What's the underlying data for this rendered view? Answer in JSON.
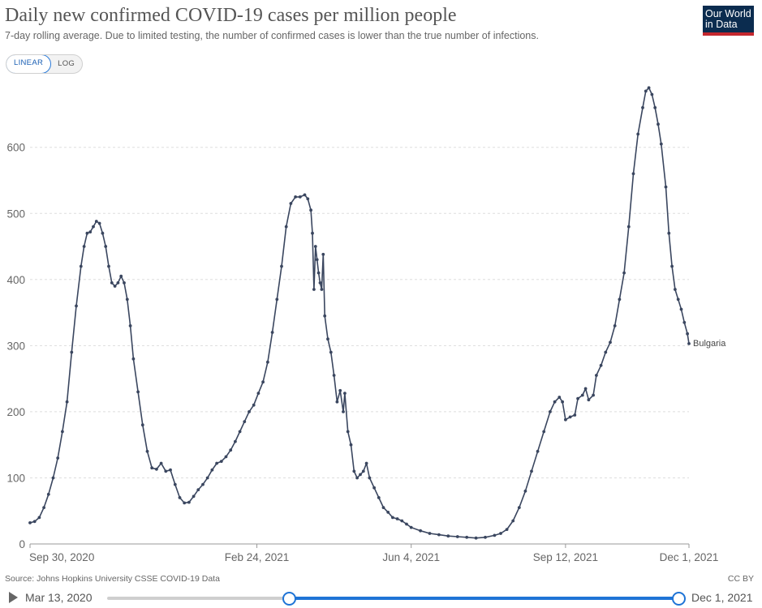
{
  "header": {
    "title": "Daily new confirmed COVID-19 cases per million people",
    "subtitle": "7-day rolling average. Due to limited testing, the number of confirmed cases is lower than the true number of infections.",
    "logo_line1": "Our World",
    "logo_line2": "in Data"
  },
  "controls": {
    "linear_label": "LINEAR",
    "log_label": "LOG",
    "active_scale": "linear"
  },
  "chart_data": {
    "type": "line",
    "title": "Daily new confirmed COVID-19 cases per million people",
    "xlabel": "",
    "ylabel": "",
    "x_range": [
      "2020-09-30",
      "2021-12-01"
    ],
    "ylim": [
      0,
      700
    ],
    "y_ticks": [
      0,
      100,
      200,
      300,
      400,
      500,
      600
    ],
    "x_ticks": [
      {
        "date": "2020-09-30",
        "label": "Sep 30, 2020"
      },
      {
        "date": "2021-02-24",
        "label": "Feb 24, 2021"
      },
      {
        "date": "2021-06-04",
        "label": "Jun 4, 2021"
      },
      {
        "date": "2021-09-12",
        "label": "Sep 12, 2021"
      },
      {
        "date": "2021-12-01",
        "label": "Dec 1, 2021"
      }
    ],
    "grid": "horizontal dashed",
    "series": [
      {
        "name": "Bulgaria",
        "color": "#3a465f",
        "points": [
          [
            "2020-09-30",
            32
          ],
          [
            "2020-10-03",
            34
          ],
          [
            "2020-10-06",
            40
          ],
          [
            "2020-10-09",
            55
          ],
          [
            "2020-10-12",
            75
          ],
          [
            "2020-10-15",
            100
          ],
          [
            "2020-10-18",
            130
          ],
          [
            "2020-10-21",
            170
          ],
          [
            "2020-10-24",
            215
          ],
          [
            "2020-10-27",
            290
          ],
          [
            "2020-10-30",
            360
          ],
          [
            "2020-11-02",
            420
          ],
          [
            "2020-11-04",
            450
          ],
          [
            "2020-11-06",
            470
          ],
          [
            "2020-11-08",
            472
          ],
          [
            "2020-11-10",
            480
          ],
          [
            "2020-11-12",
            488
          ],
          [
            "2020-11-14",
            485
          ],
          [
            "2020-11-16",
            470
          ],
          [
            "2020-11-18",
            450
          ],
          [
            "2020-11-20",
            420
          ],
          [
            "2020-11-22",
            395
          ],
          [
            "2020-11-24",
            390
          ],
          [
            "2020-11-26",
            395
          ],
          [
            "2020-11-28",
            405
          ],
          [
            "2020-11-30",
            395
          ],
          [
            "2020-12-02",
            370
          ],
          [
            "2020-12-04",
            330
          ],
          [
            "2020-12-06",
            280
          ],
          [
            "2020-12-09",
            230
          ],
          [
            "2020-12-12",
            180
          ],
          [
            "2020-12-15",
            140
          ],
          [
            "2020-12-18",
            115
          ],
          [
            "2020-12-21",
            113
          ],
          [
            "2020-12-24",
            122
          ],
          [
            "2020-12-27",
            110
          ],
          [
            "2020-12-30",
            112
          ],
          [
            "2021-01-02",
            90
          ],
          [
            "2021-01-05",
            70
          ],
          [
            "2021-01-08",
            62
          ],
          [
            "2021-01-11",
            63
          ],
          [
            "2021-01-14",
            72
          ],
          [
            "2021-01-17",
            82
          ],
          [
            "2021-01-20",
            90
          ],
          [
            "2021-01-23",
            100
          ],
          [
            "2021-01-26",
            112
          ],
          [
            "2021-01-29",
            122
          ],
          [
            "2021-02-01",
            125
          ],
          [
            "2021-02-04",
            132
          ],
          [
            "2021-02-07",
            142
          ],
          [
            "2021-02-10",
            155
          ],
          [
            "2021-02-13",
            170
          ],
          [
            "2021-02-16",
            185
          ],
          [
            "2021-02-19",
            200
          ],
          [
            "2021-02-22",
            210
          ],
          [
            "2021-02-25",
            228
          ],
          [
            "2021-02-28",
            245
          ],
          [
            "2021-03-03",
            275
          ],
          [
            "2021-03-06",
            320
          ],
          [
            "2021-03-09",
            370
          ],
          [
            "2021-03-12",
            420
          ],
          [
            "2021-03-15",
            480
          ],
          [
            "2021-03-18",
            515
          ],
          [
            "2021-03-21",
            525
          ],
          [
            "2021-03-24",
            525
          ],
          [
            "2021-03-27",
            528
          ],
          [
            "2021-03-29",
            522
          ],
          [
            "2021-03-31",
            505
          ],
          [
            "2021-04-01",
            470
          ],
          [
            "2021-04-02",
            385
          ],
          [
            "2021-04-03",
            450
          ],
          [
            "2021-04-04",
            430
          ],
          [
            "2021-04-05",
            410
          ],
          [
            "2021-04-06",
            395
          ],
          [
            "2021-04-07",
            385
          ],
          [
            "2021-04-08",
            438
          ],
          [
            "2021-04-09",
            345
          ],
          [
            "2021-04-11",
            310
          ],
          [
            "2021-04-13",
            290
          ],
          [
            "2021-04-15",
            255
          ],
          [
            "2021-04-17",
            215
          ],
          [
            "2021-04-19",
            232
          ],
          [
            "2021-04-21",
            200
          ],
          [
            "2021-04-22",
            228
          ],
          [
            "2021-04-24",
            170
          ],
          [
            "2021-04-26",
            150
          ],
          [
            "2021-04-28",
            110
          ],
          [
            "2021-04-30",
            100
          ],
          [
            "2021-05-02",
            105
          ],
          [
            "2021-05-04",
            110
          ],
          [
            "2021-05-06",
            122
          ],
          [
            "2021-05-08",
            100
          ],
          [
            "2021-05-11",
            85
          ],
          [
            "2021-05-14",
            70
          ],
          [
            "2021-05-17",
            55
          ],
          [
            "2021-05-20",
            48
          ],
          [
            "2021-05-23",
            40
          ],
          [
            "2021-05-26",
            38
          ],
          [
            "2021-05-29",
            35
          ],
          [
            "2021-06-01",
            30
          ],
          [
            "2021-06-04",
            25
          ],
          [
            "2021-06-10",
            20
          ],
          [
            "2021-06-16",
            16
          ],
          [
            "2021-06-22",
            14
          ],
          [
            "2021-06-28",
            12
          ],
          [
            "2021-07-04",
            11
          ],
          [
            "2021-07-10",
            10
          ],
          [
            "2021-07-16",
            9
          ],
          [
            "2021-07-22",
            10
          ],
          [
            "2021-07-28",
            13
          ],
          [
            "2021-08-01",
            16
          ],
          [
            "2021-08-05",
            22
          ],
          [
            "2021-08-09",
            35
          ],
          [
            "2021-08-13",
            55
          ],
          [
            "2021-08-17",
            80
          ],
          [
            "2021-08-21",
            110
          ],
          [
            "2021-08-25",
            140
          ],
          [
            "2021-08-29",
            170
          ],
          [
            "2021-09-02",
            200
          ],
          [
            "2021-09-05",
            215
          ],
          [
            "2021-09-08",
            222
          ],
          [
            "2021-09-10",
            215
          ],
          [
            "2021-09-12",
            188
          ],
          [
            "2021-09-15",
            192
          ],
          [
            "2021-09-18",
            195
          ],
          [
            "2021-09-20",
            220
          ],
          [
            "2021-09-23",
            225
          ],
          [
            "2021-09-25",
            235
          ],
          [
            "2021-09-27",
            218
          ],
          [
            "2021-09-30",
            225
          ],
          [
            "2021-10-02",
            255
          ],
          [
            "2021-10-05",
            270
          ],
          [
            "2021-10-08",
            290
          ],
          [
            "2021-10-11",
            305
          ],
          [
            "2021-10-14",
            330
          ],
          [
            "2021-10-17",
            370
          ],
          [
            "2021-10-20",
            410
          ],
          [
            "2021-10-23",
            480
          ],
          [
            "2021-10-26",
            560
          ],
          [
            "2021-10-29",
            620
          ],
          [
            "2021-11-01",
            660
          ],
          [
            "2021-11-03",
            685
          ],
          [
            "2021-11-05",
            690
          ],
          [
            "2021-11-07",
            680
          ],
          [
            "2021-11-09",
            660
          ],
          [
            "2021-11-11",
            635
          ],
          [
            "2021-11-13",
            605
          ],
          [
            "2021-11-16",
            540
          ],
          [
            "2021-11-18",
            470
          ],
          [
            "2021-11-20",
            420
          ],
          [
            "2021-11-22",
            385
          ],
          [
            "2021-11-24",
            370
          ],
          [
            "2021-11-26",
            355
          ],
          [
            "2021-11-28",
            335
          ],
          [
            "2021-11-30",
            318
          ],
          [
            "2021-12-01",
            303
          ]
        ]
      }
    ]
  },
  "footer": {
    "source": "Source: Johns Hopkins University CSSE COVID-19 Data",
    "license": "CC BY"
  },
  "timeline": {
    "start_label": "Mar 13, 2020",
    "end_label": "Dec 1, 2021"
  }
}
